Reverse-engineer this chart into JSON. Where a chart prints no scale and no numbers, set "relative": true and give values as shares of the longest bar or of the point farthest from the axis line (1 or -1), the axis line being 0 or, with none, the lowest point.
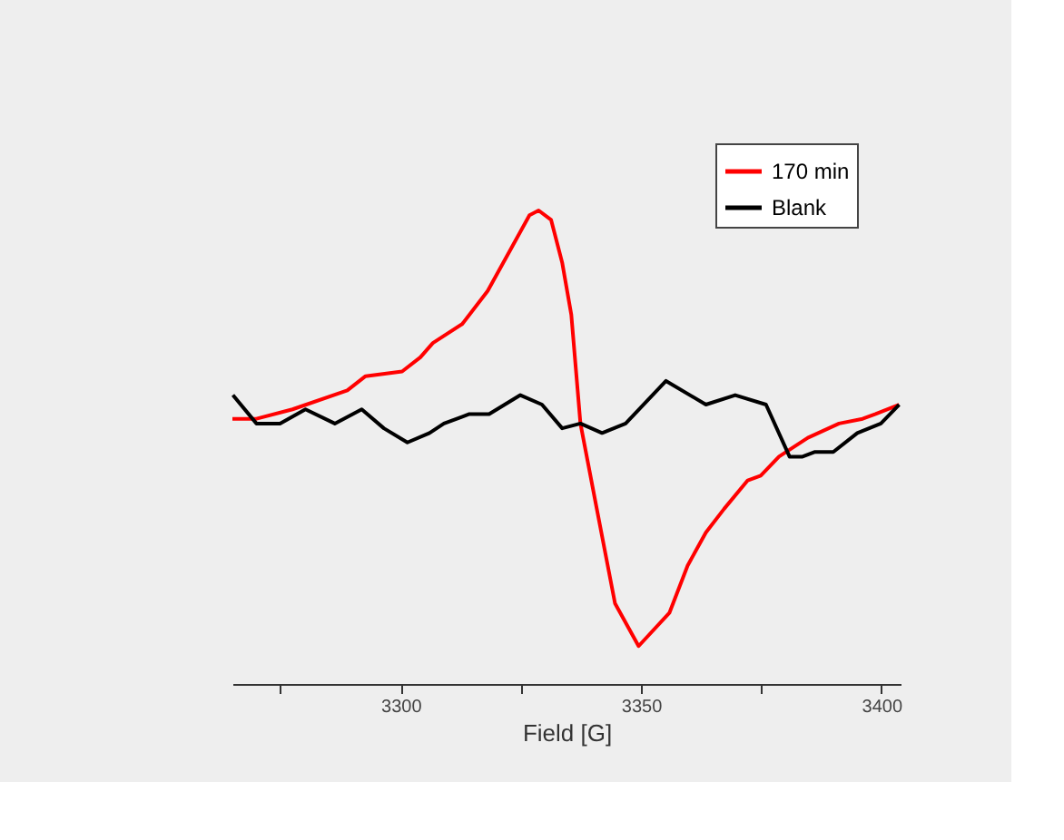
{
  "chart_data": {
    "type": "line",
    "xlabel": "Field [G]",
    "relative": true,
    "legend": "top right",
    "grid": false,
    "marker": "none",
    "line_style": "solid",
    "xlim": [
      3265,
      3404
    ],
    "xticks": [
      {
        "value": 3275,
        "label": null
      },
      3300,
      {
        "value": 3325,
        "label": null
      },
      3350,
      {
        "value": 3375,
        "label": null
      },
      3400
    ],
    "series": [
      {
        "name": "170 min",
        "color": "#ff0000",
        "x": [
          3265,
          3270,
          3277.5,
          3288.9,
          3292.7,
          3300.3,
          3304.1,
          3306.7,
          3312.8,
          3318.1,
          3323,
          3326.8,
          3328.7,
          3331.3,
          3333.6,
          3335.5,
          3337.4,
          3340.8,
          3344.6,
          3349.5,
          3355.9,
          3359.7,
          3363.5,
          3367.3,
          3372.2,
          3374.9,
          3378.7,
          3384.7,
          3391.2,
          3396.1,
          3398.8,
          3403.7
        ],
        "values": [
          0.56,
          0.56,
          0.58,
          0.62,
          0.65,
          0.66,
          0.69,
          0.72,
          0.76,
          0.83,
          0.92,
          0.99,
          1.0,
          0.98,
          0.89,
          0.78,
          0.55,
          0.37,
          0.17,
          0.08,
          0.15,
          0.25,
          0.32,
          0.37,
          0.43,
          0.44,
          0.48,
          0.52,
          0.55,
          0.56,
          0.57,
          0.59
        ]
      },
      {
        "name": "Blank",
        "color": "#000000",
        "x": [
          3265.1,
          3270,
          3274.9,
          3280.2,
          3286.3,
          3291.9,
          3296.5,
          3301.4,
          3306,
          3309,
          3314.3,
          3318.4,
          3324.9,
          3329.4,
          3333.6,
          3337.4,
          3341.9,
          3346.8,
          3355.2,
          3363.5,
          3369.6,
          3376,
          3380.9,
          3383.6,
          3386.2,
          3390,
          3395,
          3399.9,
          3403.7
        ],
        "values": [
          0.61,
          0.55,
          0.55,
          0.58,
          0.55,
          0.58,
          0.54,
          0.51,
          0.53,
          0.55,
          0.57,
          0.57,
          0.61,
          0.59,
          0.54,
          0.55,
          0.53,
          0.55,
          0.64,
          0.59,
          0.61,
          0.59,
          0.48,
          0.48,
          0.49,
          0.49,
          0.53,
          0.55,
          0.59
        ]
      }
    ]
  }
}
